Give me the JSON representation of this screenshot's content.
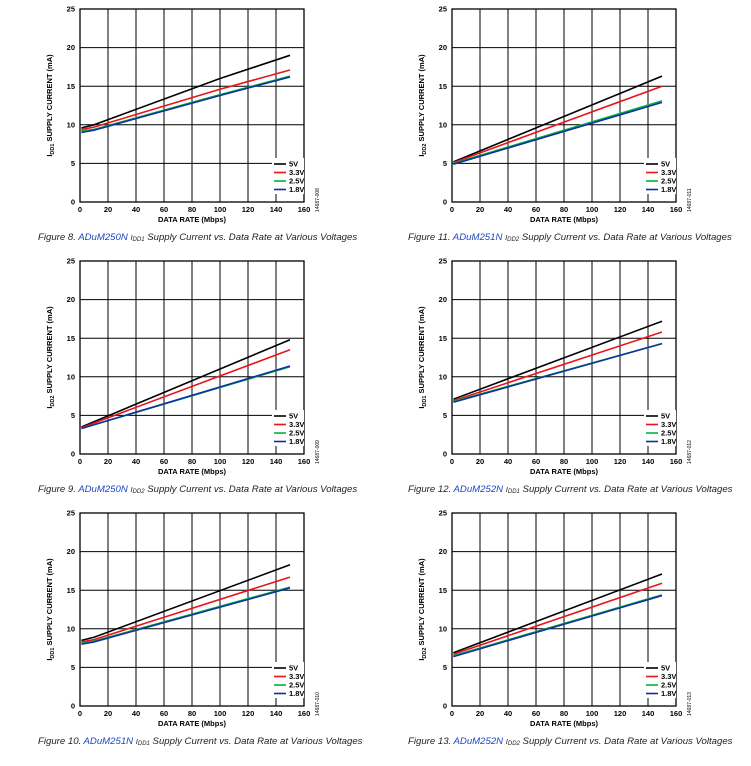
{
  "chart_data": [
    {
      "type": "line",
      "figure": "Figure 8.",
      "part": "ADuM250N",
      "ylabel_prefix": "I",
      "ylabel_sub": "DD1",
      "ylabel_rest": " SUPPLY CURRENT (mA)",
      "xlabel": "DATA RATE (Mbps)",
      "cap_sym_main": "I",
      "cap_sym_sub": "DD1",
      "cap_rest": " Supply Current vs. Data Rate at Various Voltages",
      "code": "14687-008",
      "xlim": [
        0,
        160
      ],
      "ylim": [
        0,
        25
      ],
      "xticks": [
        0,
        20,
        40,
        60,
        80,
        100,
        120,
        140,
        160
      ],
      "yticks": [
        0,
        5,
        10,
        15,
        20,
        25
      ],
      "grid": true,
      "legend_position": "bottom-right",
      "series": [
        {
          "name": "5V",
          "color": "#000000",
          "x": [
            1,
            10,
            100,
            150
          ],
          "y": [
            9.6,
            10.0,
            16.0,
            19.0
          ]
        },
        {
          "name": "3.3V",
          "color": "#e8141c",
          "x": [
            1,
            10,
            100,
            150
          ],
          "y": [
            9.4,
            9.7,
            14.6,
            17.1
          ]
        },
        {
          "name": "2.5V",
          "color": "#00b33c",
          "x": [
            1,
            10,
            100,
            150
          ],
          "y": [
            9.2,
            9.4,
            13.9,
            16.3
          ]
        },
        {
          "name": "1.8V",
          "color": "#1030a0",
          "x": [
            1,
            10,
            100,
            150
          ],
          "y": [
            9.0,
            9.3,
            13.8,
            16.2
          ]
        }
      ]
    },
    {
      "type": "line",
      "figure": "Figure 11.",
      "part": "ADuM251N",
      "ylabel_prefix": "I",
      "ylabel_sub": "DD2",
      "ylabel_rest": " SUPPLY CURRENT (mA)",
      "xlabel": "DATA RATE (Mbps)",
      "cap_sym_main": "I",
      "cap_sym_sub": "DD2",
      "cap_rest": " Supply Current vs. Data Rate at Various Voltages",
      "code": "14687-011",
      "xlim": [
        0,
        160
      ],
      "ylim": [
        0,
        25
      ],
      "xticks": [
        0,
        20,
        40,
        60,
        80,
        100,
        120,
        140,
        160
      ],
      "yticks": [
        0,
        5,
        10,
        15,
        20,
        25
      ],
      "grid": true,
      "legend_position": "bottom-right",
      "series": [
        {
          "name": "5V",
          "color": "#000000",
          "x": [
            1,
            150
          ],
          "y": [
            5.2,
            16.3
          ]
        },
        {
          "name": "3.3V",
          "color": "#e8141c",
          "x": [
            1,
            150
          ],
          "y": [
            5.1,
            15.0
          ]
        },
        {
          "name": "2.5V",
          "color": "#00b33c",
          "x": [
            1,
            150
          ],
          "y": [
            5.0,
            13.1
          ]
        },
        {
          "name": "1.8V",
          "color": "#1030a0",
          "x": [
            1,
            150
          ],
          "y": [
            4.9,
            12.9
          ]
        }
      ]
    },
    {
      "type": "line",
      "figure": "Figure 9.",
      "part": "ADuM250N",
      "ylabel_prefix": "I",
      "ylabel_sub": "DD2",
      "ylabel_rest": " SUPPLY CURRENT (mA)",
      "xlabel": "DATA RATE (Mbps)",
      "cap_sym_main": "I",
      "cap_sym_sub": "DD2",
      "cap_rest": " Supply Current vs. Data Rate at Various Voltages",
      "code": "14687-009",
      "xlim": [
        0,
        160
      ],
      "ylim": [
        0,
        25
      ],
      "xticks": [
        0,
        20,
        40,
        60,
        80,
        100,
        120,
        140,
        160
      ],
      "yticks": [
        0,
        5,
        10,
        15,
        20,
        25
      ],
      "grid": true,
      "legend_position": "bottom-right",
      "series": [
        {
          "name": "5V",
          "color": "#000000",
          "x": [
            1,
            150
          ],
          "y": [
            3.5,
            14.8
          ]
        },
        {
          "name": "3.3V",
          "color": "#e8141c",
          "x": [
            1,
            150
          ],
          "y": [
            3.4,
            13.5
          ]
        },
        {
          "name": "2.5V",
          "color": "#00b33c",
          "x": [
            1,
            150
          ],
          "y": [
            3.3,
            11.3
          ]
        },
        {
          "name": "1.8V",
          "color": "#1030a0",
          "x": [
            1,
            150
          ],
          "y": [
            3.3,
            11.4
          ]
        }
      ]
    },
    {
      "type": "line",
      "figure": "Figure 12.",
      "part": "ADuM252N",
      "ylabel_prefix": "I",
      "ylabel_sub": "DD1",
      "ylabel_rest": " SUPPLY CURRENT (mA)",
      "xlabel": "DATA RATE (Mbps)",
      "cap_sym_main": "I",
      "cap_sym_sub": "DD1",
      "cap_rest": " Supply Current vs. Data Rate at Various Voltages",
      "code": "14687-012",
      "xlim": [
        0,
        160
      ],
      "ylim": [
        0,
        25
      ],
      "xticks": [
        0,
        20,
        40,
        60,
        80,
        100,
        120,
        140,
        160
      ],
      "yticks": [
        0,
        5,
        10,
        15,
        20,
        25
      ],
      "grid": true,
      "legend_position": "bottom-right",
      "series": [
        {
          "name": "5V",
          "color": "#000000",
          "x": [
            1,
            150
          ],
          "y": [
            7.1,
            17.2
          ]
        },
        {
          "name": "3.3V",
          "color": "#e8141c",
          "x": [
            1,
            150
          ],
          "y": [
            6.9,
            15.8
          ]
        },
        {
          "name": "2.5V",
          "color": "#00b33c",
          "x": [
            1,
            150
          ],
          "y": [
            6.8,
            14.3
          ]
        },
        {
          "name": "1.8V",
          "color": "#1030a0",
          "x": [
            1,
            150
          ],
          "y": [
            6.7,
            14.3
          ]
        }
      ]
    },
    {
      "type": "line",
      "figure": "Figure 10.",
      "part": "ADuM251N",
      "ylabel_prefix": "I",
      "ylabel_sub": "DD1",
      "ylabel_rest": " SUPPLY CURRENT (mA)",
      "xlabel": "DATA RATE (Mbps)",
      "cap_sym_main": "I",
      "cap_sym_sub": "DD1",
      "cap_rest": " Supply Current vs. Data Rate at Various Voltages",
      "code": "14687-010",
      "xlim": [
        0,
        160
      ],
      "ylim": [
        0,
        25
      ],
      "xticks": [
        0,
        20,
        40,
        60,
        80,
        100,
        120,
        140,
        160
      ],
      "yticks": [
        0,
        5,
        10,
        15,
        20,
        25
      ],
      "grid": true,
      "legend_position": "bottom-right",
      "series": [
        {
          "name": "5V",
          "color": "#000000",
          "x": [
            1,
            10,
            150
          ],
          "y": [
            8.5,
            8.9,
            18.3
          ]
        },
        {
          "name": "3.3V",
          "color": "#e8141c",
          "x": [
            1,
            10,
            150
          ],
          "y": [
            8.3,
            8.6,
            16.7
          ]
        },
        {
          "name": "2.5V",
          "color": "#00b33c",
          "x": [
            1,
            10,
            150
          ],
          "y": [
            8.1,
            8.4,
            15.4
          ]
        },
        {
          "name": "1.8V",
          "color": "#1030a0",
          "x": [
            1,
            10,
            150
          ],
          "y": [
            8.0,
            8.3,
            15.3
          ]
        }
      ]
    },
    {
      "type": "line",
      "figure": "Figure 13.",
      "part": "ADuM252N",
      "ylabel_prefix": "I",
      "ylabel_sub": "DD2",
      "ylabel_rest": " SUPPLY CURRENT (mA)",
      "xlabel": "DATA RATE (Mbps)",
      "cap_sym_main": "I",
      "cap_sym_sub": "DD2",
      "cap_rest": " Supply Current vs. Data Rate at Various Voltages",
      "code": "14687-013",
      "xlim": [
        0,
        160
      ],
      "ylim": [
        0,
        25
      ],
      "xticks": [
        0,
        20,
        40,
        60,
        80,
        100,
        120,
        140,
        160
      ],
      "yticks": [
        0,
        5,
        10,
        15,
        20,
        25
      ],
      "grid": true,
      "legend_position": "bottom-right",
      "series": [
        {
          "name": "5V",
          "color": "#000000",
          "x": [
            1,
            150
          ],
          "y": [
            6.9,
            17.1
          ]
        },
        {
          "name": "3.3V",
          "color": "#e8141c",
          "x": [
            1,
            150
          ],
          "y": [
            6.7,
            15.9
          ]
        },
        {
          "name": "2.5V",
          "color": "#00b33c",
          "x": [
            1,
            150
          ],
          "y": [
            6.5,
            14.4
          ]
        },
        {
          "name": "1.8V",
          "color": "#1030a0",
          "x": [
            1,
            150
          ],
          "y": [
            6.4,
            14.3
          ]
        }
      ]
    }
  ]
}
